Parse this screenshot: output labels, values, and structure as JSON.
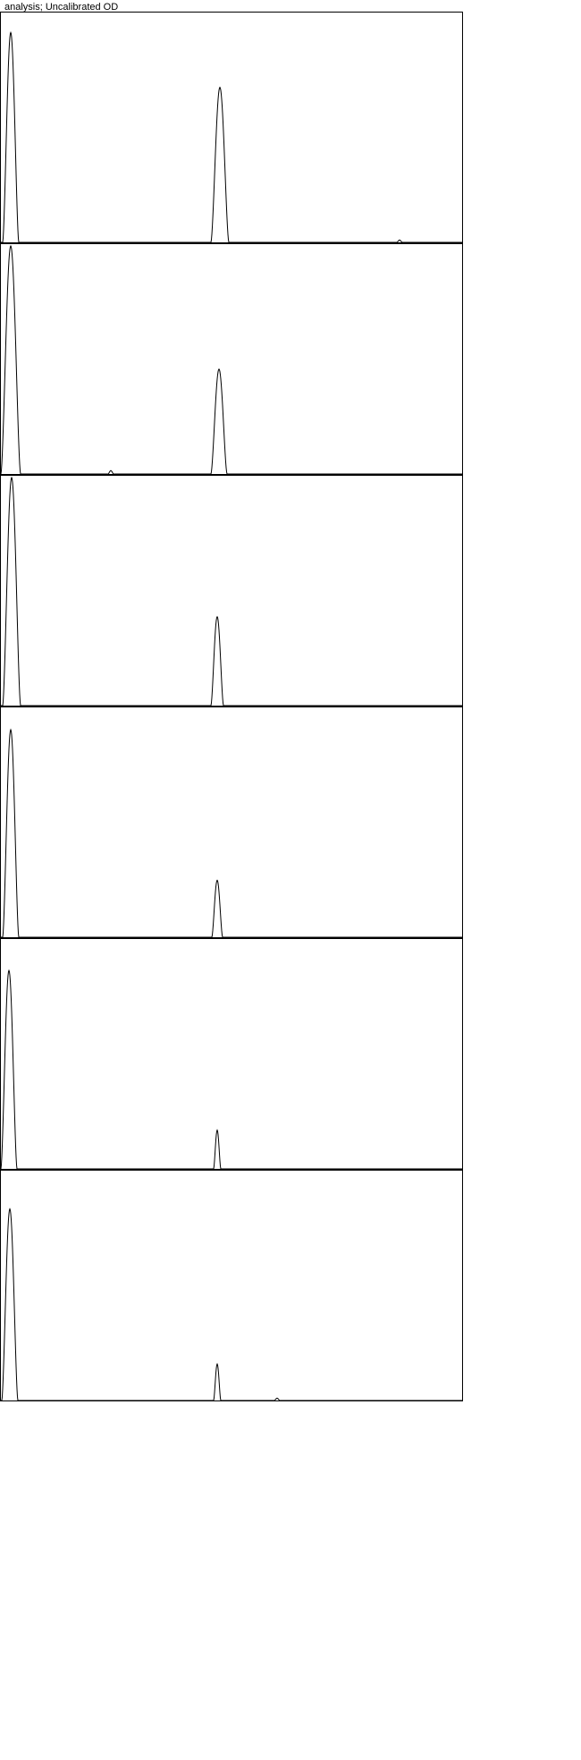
{
  "title": "analysis; Uncalibrated OD",
  "colors": {
    "line": "#000000",
    "frame": "#000000",
    "background": "#ffffff"
  },
  "chart_data": {
    "type": "line",
    "title": "analysis; Uncalibrated OD",
    "xlabel": "",
    "ylabel": "",
    "xlim": [
      0,
      518
    ],
    "ylim": [
      0,
      1
    ],
    "grid": false,
    "series": [
      {
        "peaks": [
          {
            "center": 12,
            "height": 0.92,
            "halfwidth": 9
          },
          {
            "center": 246,
            "height": 0.68,
            "halfwidth": 10
          },
          {
            "center": 447,
            "height": 0.01,
            "halfwidth": 3
          }
        ]
      },
      {
        "peaks": [
          {
            "center": 12,
            "height": 1.0,
            "halfwidth": 11
          },
          {
            "center": 245,
            "height": 0.46,
            "halfwidth": 9
          },
          {
            "center": 124,
            "height": 0.015,
            "halfwidth": 3
          }
        ]
      },
      {
        "peaks": [
          {
            "center": 13,
            "height": 1.0,
            "halfwidth": 10
          },
          {
            "center": 243,
            "height": 0.39,
            "halfwidth": 7
          }
        ]
      },
      {
        "peaks": [
          {
            "center": 12,
            "height": 0.91,
            "halfwidth": 9
          },
          {
            "center": 243,
            "height": 0.25,
            "halfwidth": 6
          }
        ]
      },
      {
        "peaks": [
          {
            "center": 10,
            "height": 0.87,
            "halfwidth": 9
          },
          {
            "center": 243,
            "height": 0.17,
            "halfwidth": 4
          }
        ]
      },
      {
        "peaks": [
          {
            "center": 11,
            "height": 0.84,
            "halfwidth": 9
          },
          {
            "center": 243,
            "height": 0.16,
            "halfwidth": 4
          },
          {
            "center": 310,
            "height": 0.01,
            "halfwidth": 3
          }
        ]
      }
    ]
  }
}
